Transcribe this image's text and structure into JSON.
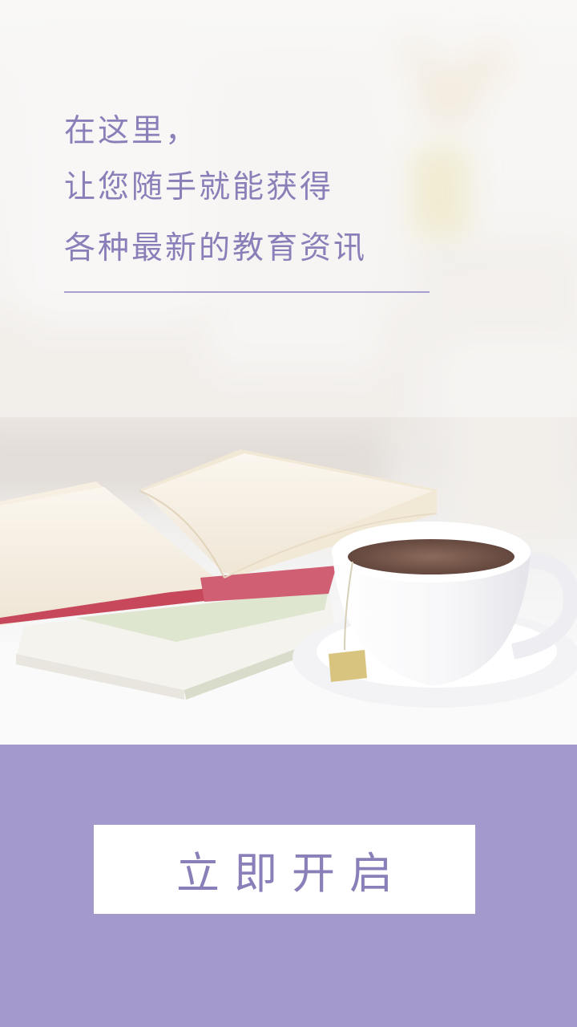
{
  "splash": {
    "headline_lines": [
      "在这里，",
      "让您随手就能获得",
      "各种最新的教育资讯"
    ],
    "cta_label": "立即开启"
  },
  "colors": {
    "accent_purple": "#a499cc",
    "text_purple": "#8a7fb8",
    "divider": "#a99ed0",
    "button_bg": "#ffffff"
  },
  "hero_image": {
    "depicts": [
      "sofa-background",
      "flower-vase",
      "open-book",
      "closed-book",
      "tea-cup",
      "saucer",
      "tea-bag-tag"
    ]
  }
}
